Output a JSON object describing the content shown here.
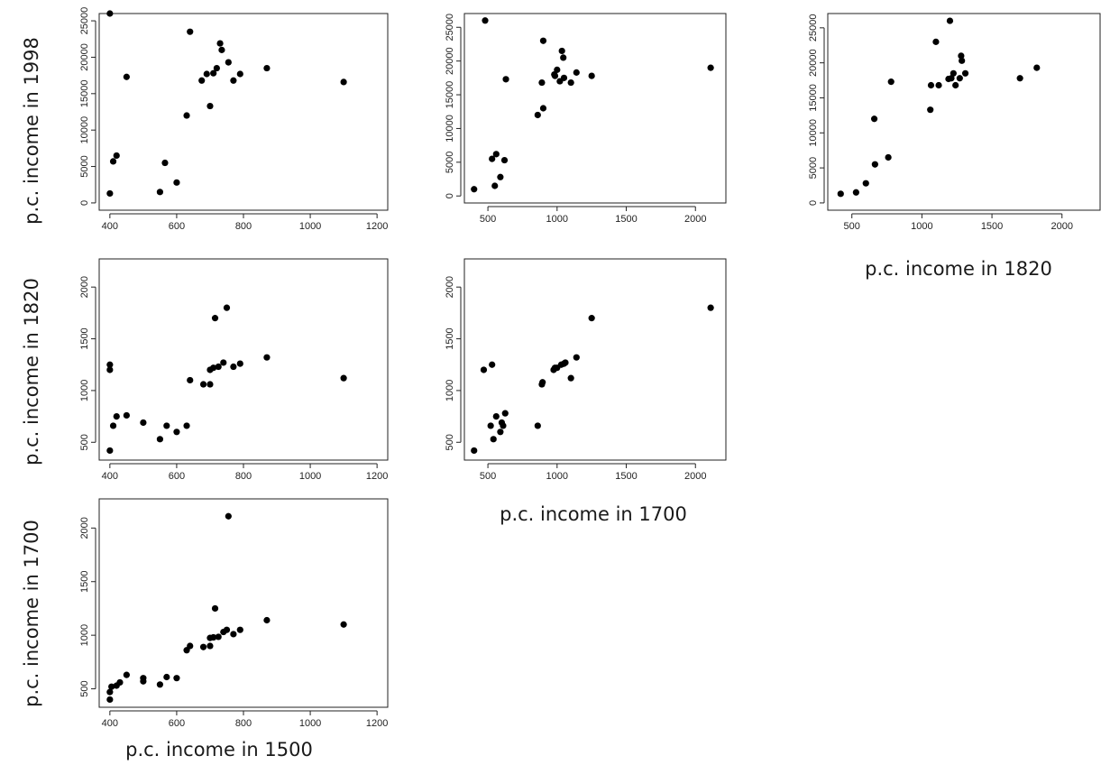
{
  "labels": {
    "y1998": "p.c. income in 1998",
    "y1820": "p.c. income in 1820",
    "y1700": "p.c. income in 1700",
    "x1500": "p.c. income in 1500",
    "x1700": "p.c. income in 1700",
    "x1820": "p.c. income in 1820"
  },
  "chart_data": [
    {
      "id": "p1500_1998",
      "type": "scatter",
      "xlabel": "p.c. income in 1500",
      "ylabel": "p.c. income in 1998",
      "xlim": [
        400,
        1200
      ],
      "ylim": [
        0,
        25000
      ],
      "xticks": [
        400,
        600,
        800,
        1000,
        1200
      ],
      "yticks": [
        0,
        5000,
        10000,
        15000,
        20000,
        25000
      ],
      "points": [
        [
          400,
          26000
        ],
        [
          400,
          1300
        ],
        [
          410,
          5700
        ],
        [
          420,
          6500
        ],
        [
          450,
          17300
        ],
        [
          550,
          1500
        ],
        [
          565,
          5500
        ],
        [
          600,
          2800
        ],
        [
          630,
          12000
        ],
        [
          640,
          23500
        ],
        [
          675,
          16800
        ],
        [
          690,
          17700
        ],
        [
          700,
          13300
        ],
        [
          710,
          17800
        ],
        [
          720,
          18500
        ],
        [
          730,
          21900
        ],
        [
          735,
          21000
        ],
        [
          755,
          19300
        ],
        [
          770,
          16800
        ],
        [
          790,
          17700
        ],
        [
          870,
          18500
        ],
        [
          1100,
          16600
        ]
      ],
      "grid": false
    },
    {
      "id": "p1700_1998",
      "type": "scatter",
      "xlabel": "",
      "ylabel": "",
      "xlim": [
        400,
        2150
      ],
      "ylim": [
        0,
        26000
      ],
      "xticks": [
        500,
        1000,
        1500,
        2000
      ],
      "yticks": [
        0,
        5000,
        10000,
        15000,
        20000,
        25000
      ],
      "points": [
        [
          400,
          1000
        ],
        [
          480,
          26000
        ],
        [
          530,
          5500
        ],
        [
          560,
          6200
        ],
        [
          550,
          1500
        ],
        [
          590,
          2800
        ],
        [
          620,
          5300
        ],
        [
          630,
          17300
        ],
        [
          860,
          12000
        ],
        [
          890,
          16800
        ],
        [
          900,
          13000
        ],
        [
          900,
          23000
        ],
        [
          980,
          18000
        ],
        [
          985,
          17800
        ],
        [
          1000,
          18700
        ],
        [
          1020,
          17000
        ],
        [
          1035,
          21500
        ],
        [
          1045,
          20500
        ],
        [
          1050,
          17500
        ],
        [
          1100,
          16800
        ],
        [
          1140,
          18300
        ],
        [
          1250,
          17800
        ],
        [
          2110,
          19000
        ]
      ],
      "grid": false
    },
    {
      "id": "p1820_1998",
      "type": "scatter",
      "xlabel": "p.c. income in 1820",
      "ylabel": "",
      "xlim": [
        400,
        2200
      ],
      "ylim": [
        0,
        26000
      ],
      "xticks": [
        500,
        1000,
        1500,
        2000
      ],
      "yticks": [
        0,
        5000,
        10000,
        15000,
        20000,
        25000
      ],
      "points": [
        [
          420,
          1300
        ],
        [
          530,
          1500
        ],
        [
          600,
          2800
        ],
        [
          660,
          12000
        ],
        [
          665,
          5500
        ],
        [
          760,
          6500
        ],
        [
          780,
          17300
        ],
        [
          1060,
          13300
        ],
        [
          1065,
          16800
        ],
        [
          1100,
          23000
        ],
        [
          1120,
          16800
        ],
        [
          1190,
          17700
        ],
        [
          1200,
          26000
        ],
        [
          1210,
          17800
        ],
        [
          1225,
          18500
        ],
        [
          1240,
          16800
        ],
        [
          1270,
          17800
        ],
        [
          1280,
          21000
        ],
        [
          1285,
          20300
        ],
        [
          1310,
          18500
        ],
        [
          1700,
          17800
        ],
        [
          1820,
          19300
        ]
      ],
      "grid": false
    },
    {
      "id": "p1500_1820",
      "type": "scatter",
      "xlabel": "",
      "ylabel": "p.c. income in 1820",
      "xlim": [
        400,
        1200
      ],
      "ylim": [
        400,
        2200
      ],
      "xticks": [
        400,
        600,
        800,
        1000,
        1200
      ],
      "yticks": [
        500,
        1000,
        1500,
        2000
      ],
      "points": [
        [
          400,
          1250
        ],
        [
          400,
          1200
        ],
        [
          400,
          420
        ],
        [
          410,
          660
        ],
        [
          420,
          750
        ],
        [
          450,
          760
        ],
        [
          500,
          690
        ],
        [
          550,
          530
        ],
        [
          570,
          660
        ],
        [
          600,
          600
        ],
        [
          630,
          660
        ],
        [
          640,
          1100
        ],
        [
          680,
          1060
        ],
        [
          700,
          1060
        ],
        [
          700,
          1200
        ],
        [
          710,
          1220
        ],
        [
          715,
          1700
        ],
        [
          725,
          1230
        ],
        [
          740,
          1270
        ],
        [
          750,
          1800
        ],
        [
          770,
          1230
        ],
        [
          790,
          1260
        ],
        [
          870,
          1320
        ],
        [
          1100,
          1120
        ]
      ],
      "grid": false
    },
    {
      "id": "p1700_1820",
      "type": "scatter",
      "xlabel": "p.c. income in 1700",
      "ylabel": "",
      "xlim": [
        400,
        2150
      ],
      "ylim": [
        400,
        2200
      ],
      "xticks": [
        500,
        1000,
        1500,
        2000
      ],
      "yticks": [
        500,
        1000,
        1500,
        2000
      ],
      "points": [
        [
          400,
          420
        ],
        [
          470,
          1200
        ],
        [
          520,
          660
        ],
        [
          530,
          1250
        ],
        [
          540,
          530
        ],
        [
          560,
          750
        ],
        [
          590,
          600
        ],
        [
          600,
          690
        ],
        [
          610,
          660
        ],
        [
          625,
          780
        ],
        [
          860,
          660
        ],
        [
          890,
          1060
        ],
        [
          895,
          1080
        ],
        [
          975,
          1200
        ],
        [
          985,
          1220
        ],
        [
          1000,
          1220
        ],
        [
          1030,
          1250
        ],
        [
          1050,
          1260
        ],
        [
          1060,
          1270
        ],
        [
          1100,
          1120
        ],
        [
          1140,
          1320
        ],
        [
          1250,
          1700
        ],
        [
          2110,
          1800
        ]
      ],
      "grid": false
    },
    {
      "id": "p1500_1700",
      "type": "scatter",
      "xlabel": "p.c. income in 1500",
      "ylabel": "p.c. income in 1700",
      "xlim": [
        400,
        1200
      ],
      "ylim": [
        400,
        2200
      ],
      "xticks": [
        400,
        600,
        800,
        1000,
        1200
      ],
      "yticks": [
        500,
        1000,
        1500,
        2000
      ],
      "points": [
        [
          400,
          400
        ],
        [
          400,
          470
        ],
        [
          405,
          520
        ],
        [
          420,
          530
        ],
        [
          430,
          560
        ],
        [
          450,
          630
        ],
        [
          500,
          600
        ],
        [
          500,
          570
        ],
        [
          550,
          540
        ],
        [
          570,
          610
        ],
        [
          600,
          600
        ],
        [
          630,
          860
        ],
        [
          640,
          900
        ],
        [
          680,
          890
        ],
        [
          700,
          900
        ],
        [
          700,
          975
        ],
        [
          710,
          980
        ],
        [
          715,
          1250
        ],
        [
          725,
          985
        ],
        [
          740,
          1030
        ],
        [
          750,
          1050
        ],
        [
          755,
          2110
        ],
        [
          770,
          1010
        ],
        [
          790,
          1050
        ],
        [
          870,
          1140
        ],
        [
          1100,
          1100
        ]
      ],
      "grid": false
    }
  ]
}
